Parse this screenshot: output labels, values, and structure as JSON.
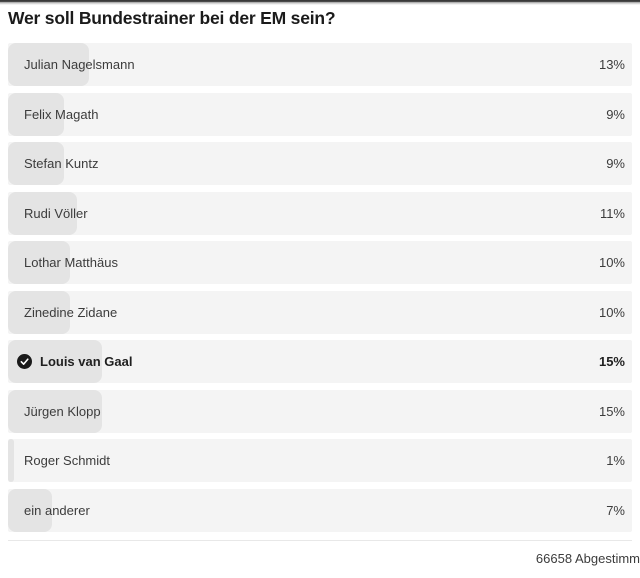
{
  "poll": {
    "title": "Wer soll Bundestrainer bei der EM sein?",
    "options": [
      {
        "label": "Julian Nagelsmann",
        "value": 13,
        "percent_label": "13%",
        "selected": false
      },
      {
        "label": "Felix Magath",
        "value": 9,
        "percent_label": "9%",
        "selected": false
      },
      {
        "label": "Stefan Kuntz",
        "value": 9,
        "percent_label": "9%",
        "selected": false
      },
      {
        "label": "Rudi Völler",
        "value": 11,
        "percent_label": "11%",
        "selected": false
      },
      {
        "label": "Lothar Matthäus",
        "value": 10,
        "percent_label": "10%",
        "selected": false
      },
      {
        "label": "Zinedine Zidane",
        "value": 10,
        "percent_label": "10%",
        "selected": false
      },
      {
        "label": "Louis van Gaal",
        "value": 15,
        "percent_label": "15%",
        "selected": true
      },
      {
        "label": "Jürgen Klopp",
        "value": 15,
        "percent_label": "15%",
        "selected": false
      },
      {
        "label": "Roger Schmidt",
        "value": 1,
        "percent_label": "1%",
        "selected": false
      },
      {
        "label": "ein anderer",
        "value": 7,
        "percent_label": "7%",
        "selected": false
      }
    ],
    "votes_text": "66658 Abgestimm",
    "selected_icon": "check-circle"
  },
  "colors": {
    "bar_track": "#f4f4f4",
    "bar_fill": "#e4e4e4",
    "check_bg": "#1a1a1a",
    "check_mark": "#ffffff",
    "title": "#1b1b1b",
    "text": "#3c3c3c",
    "divider": "#e8e8e8",
    "top_rule": "#3a3a3a"
  },
  "chart_data": {
    "type": "bar",
    "title": "Wer soll Bundestrainer bei der EM sein?",
    "categories": [
      "Julian Nagelsmann",
      "Felix Magath",
      "Stefan Kuntz",
      "Rudi Völler",
      "Lothar Matthäus",
      "Zinedine Zidane",
      "Louis van Gaal",
      "Jürgen Klopp",
      "Roger Schmidt",
      "ein anderer"
    ],
    "values": [
      13,
      9,
      9,
      11,
      10,
      10,
      15,
      15,
      1,
      7
    ],
    "unit": "%",
    "orientation": "horizontal",
    "xlim": [
      0,
      100
    ],
    "annotation": "66658 Abgestimm",
    "selected_category": "Louis van Gaal"
  }
}
